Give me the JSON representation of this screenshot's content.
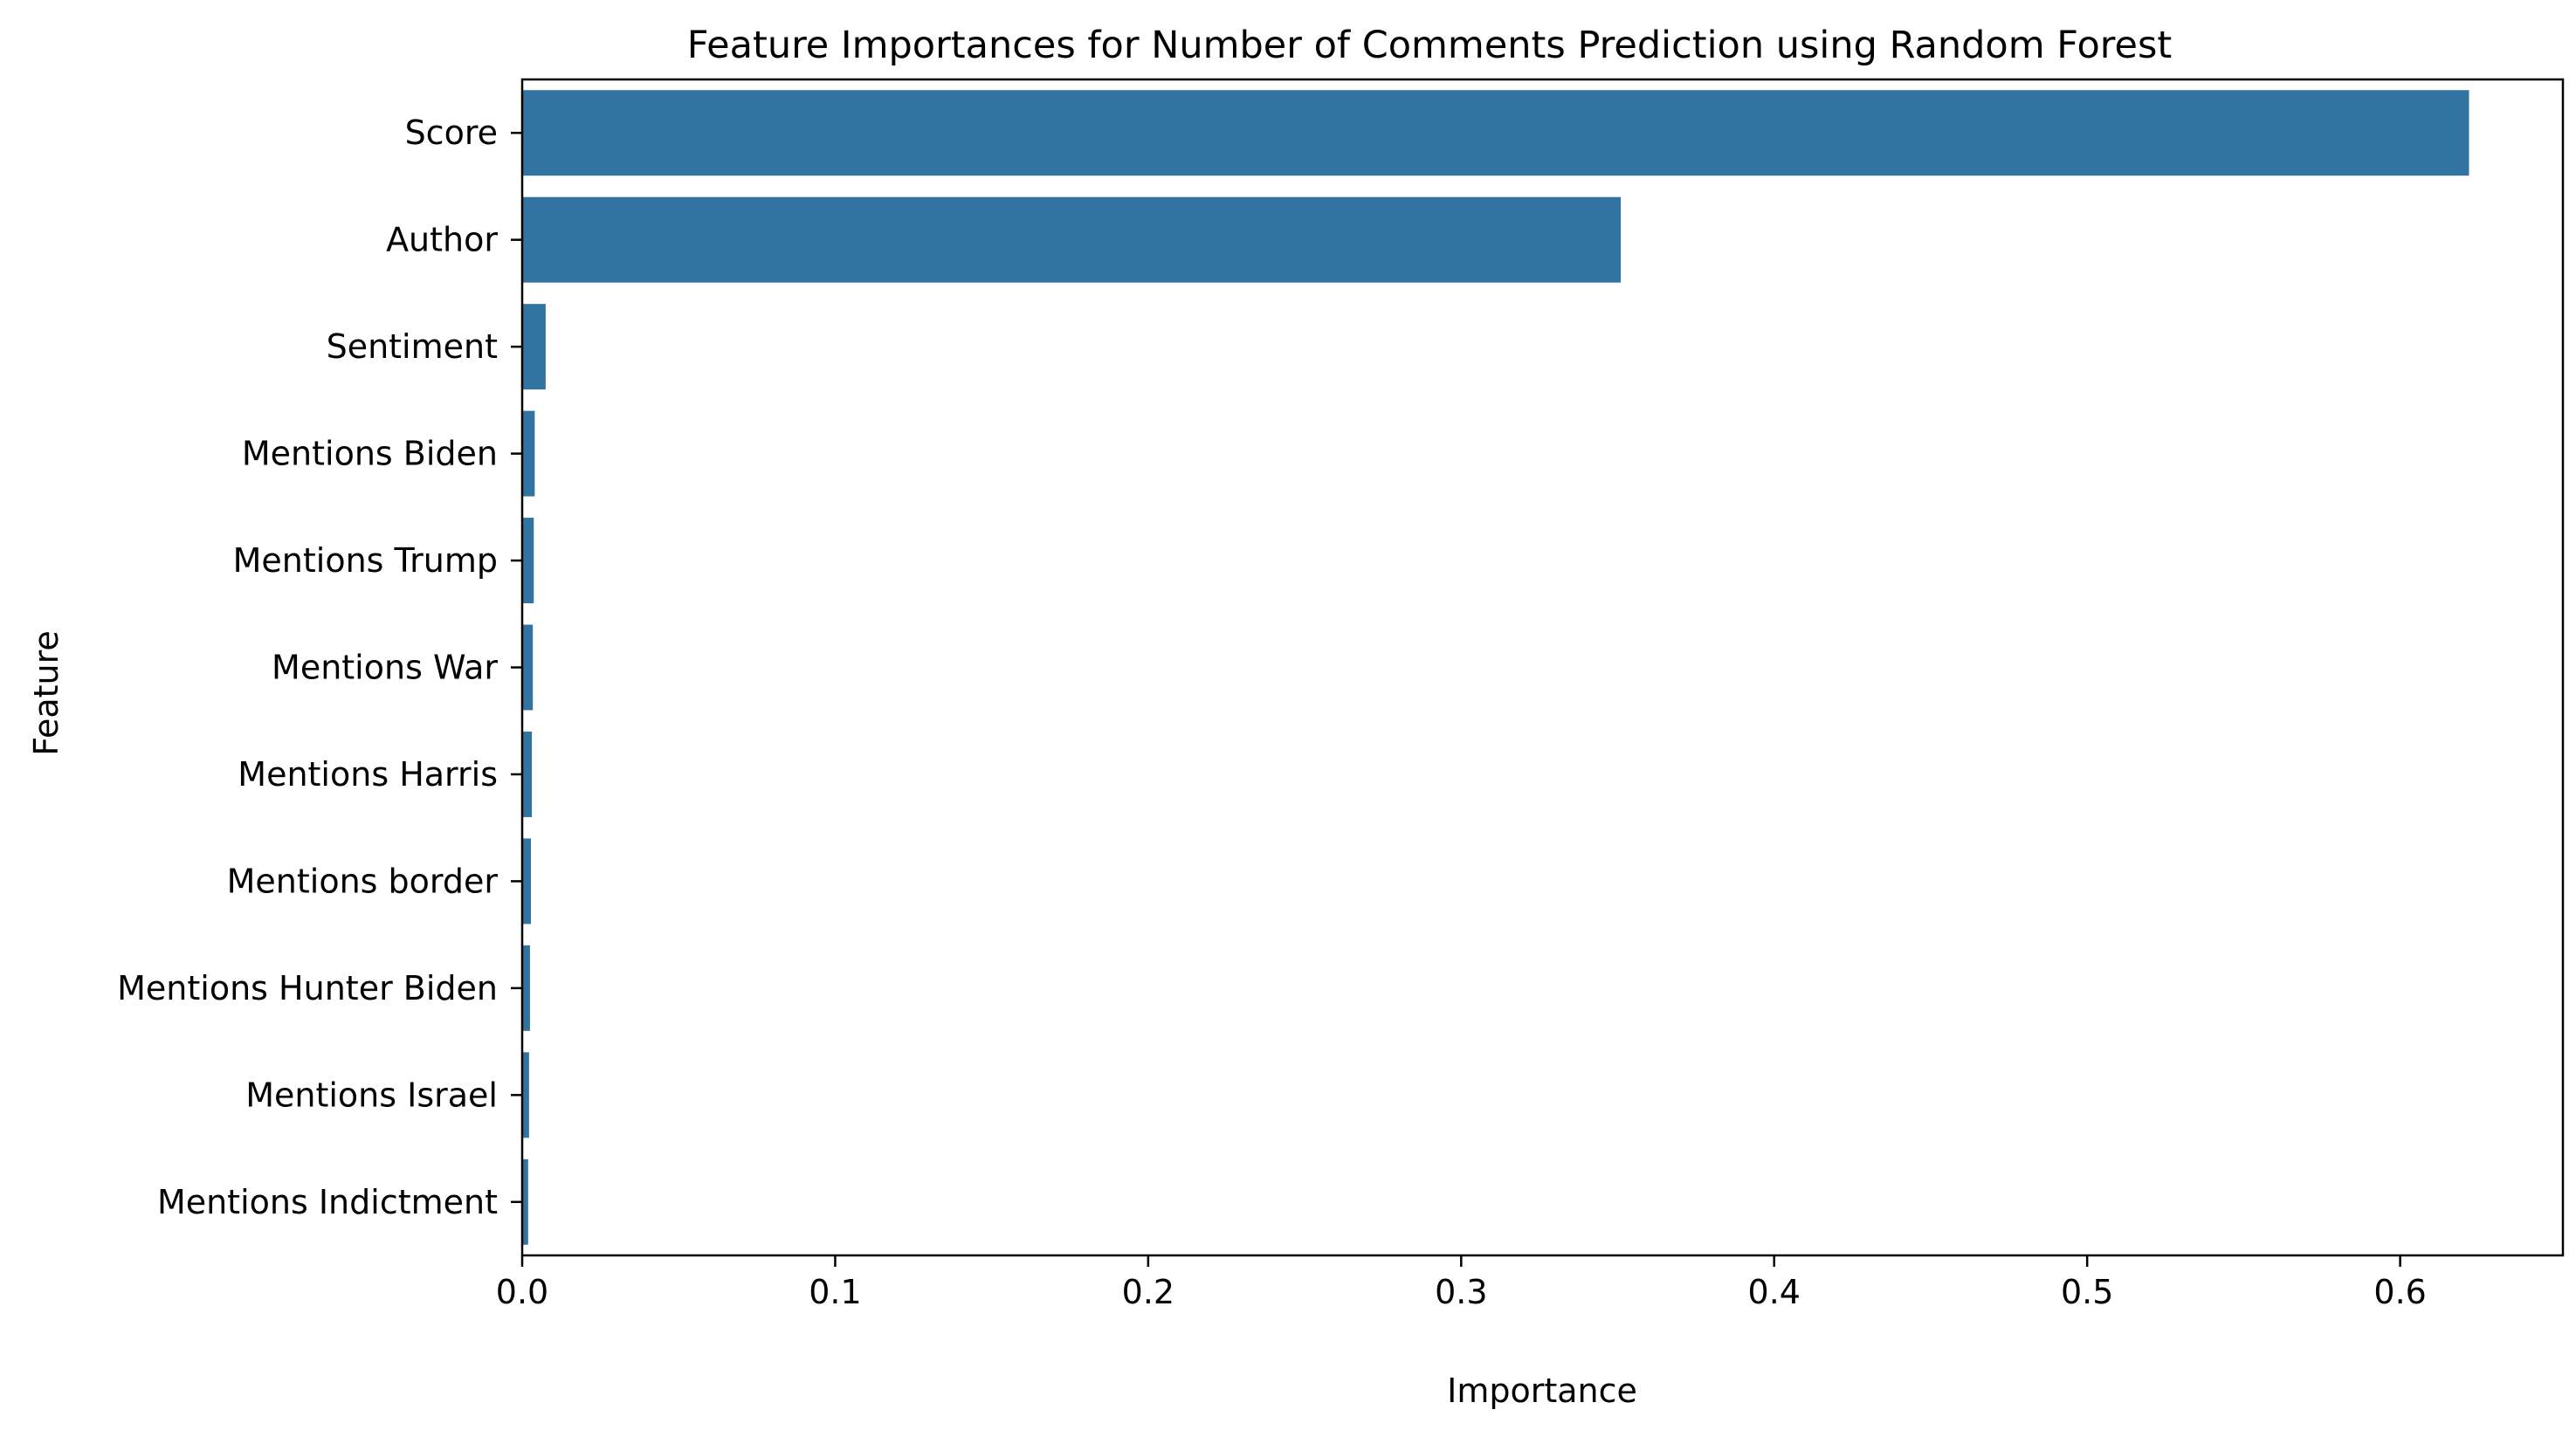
{
  "chart_data": {
    "type": "bar",
    "orientation": "horizontal",
    "title": "Feature Importances for Number of Comments Prediction using Random Forest",
    "xlabel": "Importance",
    "ylabel": "Feature",
    "categories": [
      "Score",
      "Author",
      "Sentiment",
      "Mentions Biden",
      "Mentions Trump",
      "Mentions War",
      "Mentions Harris",
      "Mentions border",
      "Mentions Hunter Biden",
      "Mentions Israel",
      "Mentions Indictment"
    ],
    "values": [
      0.622,
      0.351,
      0.0075,
      0.004,
      0.0037,
      0.0034,
      0.0031,
      0.0028,
      0.0025,
      0.0022,
      0.0019
    ],
    "xlim": [
      0.0,
      0.652
    ],
    "xticks": [
      "0.0",
      "0.1",
      "0.2",
      "0.3",
      "0.4",
      "0.5",
      "0.6"
    ],
    "grid": false,
    "legend": "none",
    "bar_color": "#3274a1"
  }
}
